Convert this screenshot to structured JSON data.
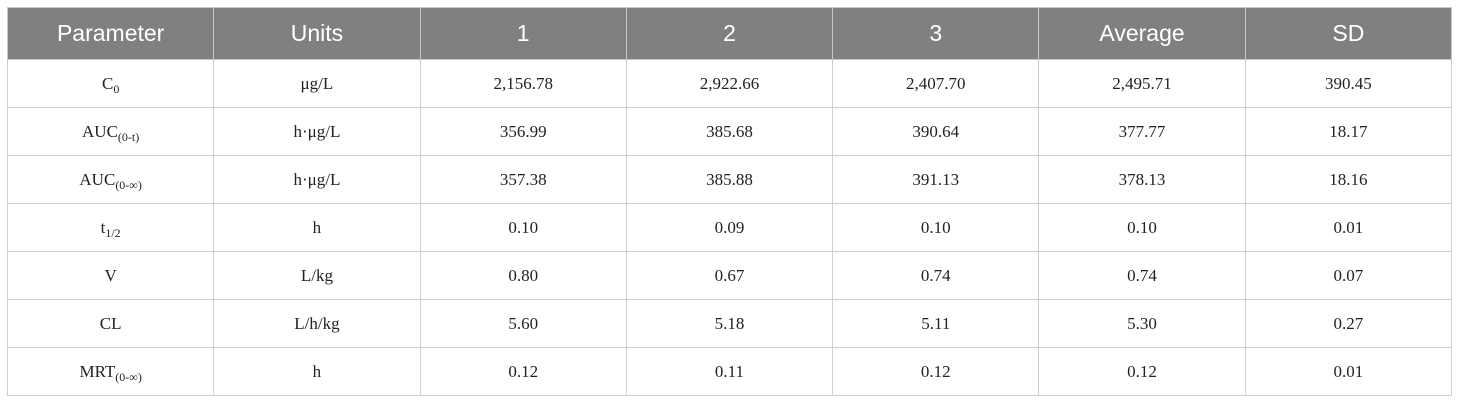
{
  "table": {
    "header": [
      "Parameter",
      "Units",
      "1",
      "2",
      "3",
      "Average",
      "SD"
    ],
    "rows": [
      {
        "parameter": {
          "base": "C",
          "sub": "0"
        },
        "units": "μg/L",
        "values": [
          "2,156.78",
          "2,922.66",
          "2,407.70",
          "2,495.71",
          "390.45"
        ]
      },
      {
        "parameter": {
          "base": "AUC",
          "sub": "(0-t)"
        },
        "units": "h·μg/L",
        "values": [
          "356.99",
          "385.68",
          "390.64",
          "377.77",
          "18.17"
        ]
      },
      {
        "parameter": {
          "base": "AUC",
          "sub": "(0-∞)"
        },
        "units": "h·μg/L",
        "values": [
          "357.38",
          "385.88",
          "391.13",
          "378.13",
          "18.16"
        ]
      },
      {
        "parameter": {
          "base": "t",
          "sub": "1/2"
        },
        "units": "h",
        "values": [
          "0.10",
          "0.09",
          "0.10",
          "0.10",
          "0.01"
        ]
      },
      {
        "parameter": {
          "base": "V"
        },
        "units": "L/kg",
        "values": [
          "0.80",
          "0.67",
          "0.74",
          "0.74",
          "0.07"
        ]
      },
      {
        "parameter": {
          "base": "CL"
        },
        "units": "L/h/kg",
        "values": [
          "5.60",
          "5.18",
          "5.11",
          "5.30",
          "0.27"
        ]
      },
      {
        "parameter": {
          "base": "MRT",
          "sub": "(0-∞)"
        },
        "units": "h",
        "values": [
          "0.12",
          "0.11",
          "0.12",
          "0.12",
          "0.01"
        ]
      }
    ]
  }
}
